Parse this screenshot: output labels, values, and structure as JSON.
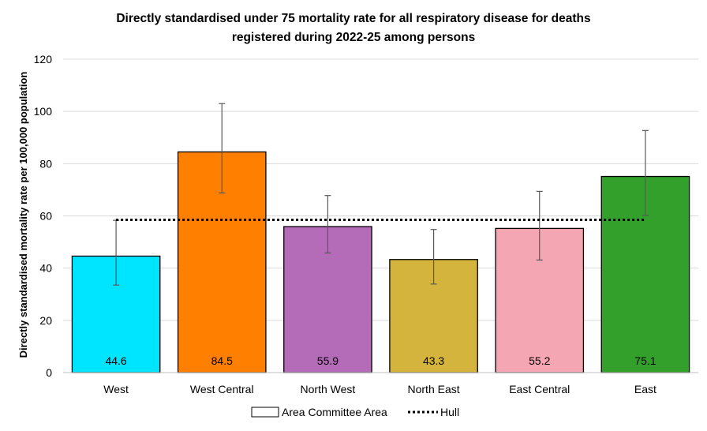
{
  "chart_data": {
    "type": "bar",
    "title_lines": [
      "Directly standardised under 75 mortality rate for all respiratory disease for deaths",
      "registered during 2022-25 among persons"
    ],
    "xlabel": "",
    "ylabel": "Directly standardised mortality rate per 100,000 population",
    "ylim": [
      0,
      120
    ],
    "yticks": [
      0,
      20,
      40,
      60,
      80,
      100,
      120
    ],
    "grid": true,
    "categories": [
      "West",
      "West Central",
      "North West",
      "North East",
      "East Central",
      "East"
    ],
    "values": [
      44.6,
      84.5,
      55.9,
      43.3,
      55.2,
      75.1
    ],
    "value_labels": [
      "44.6",
      "84.5",
      "55.9",
      "43.3",
      "55.2",
      "75.1"
    ],
    "ci_lower": [
      33.5,
      68.8,
      45.8,
      33.9,
      43.1,
      60.2
    ],
    "ci_upper": [
      58.3,
      103.0,
      67.8,
      54.8,
      69.4,
      92.7
    ],
    "bar_colors": [
      "#00E5FF",
      "#FF8000",
      "#B46CB8",
      "#D4B43C",
      "#F4A6B2",
      "#33A02C"
    ],
    "reference_line": {
      "name": "Hull",
      "value": 58.5
    },
    "legend": {
      "position": "bottom",
      "items": [
        "Area Committee Area",
        "Hull"
      ]
    }
  }
}
